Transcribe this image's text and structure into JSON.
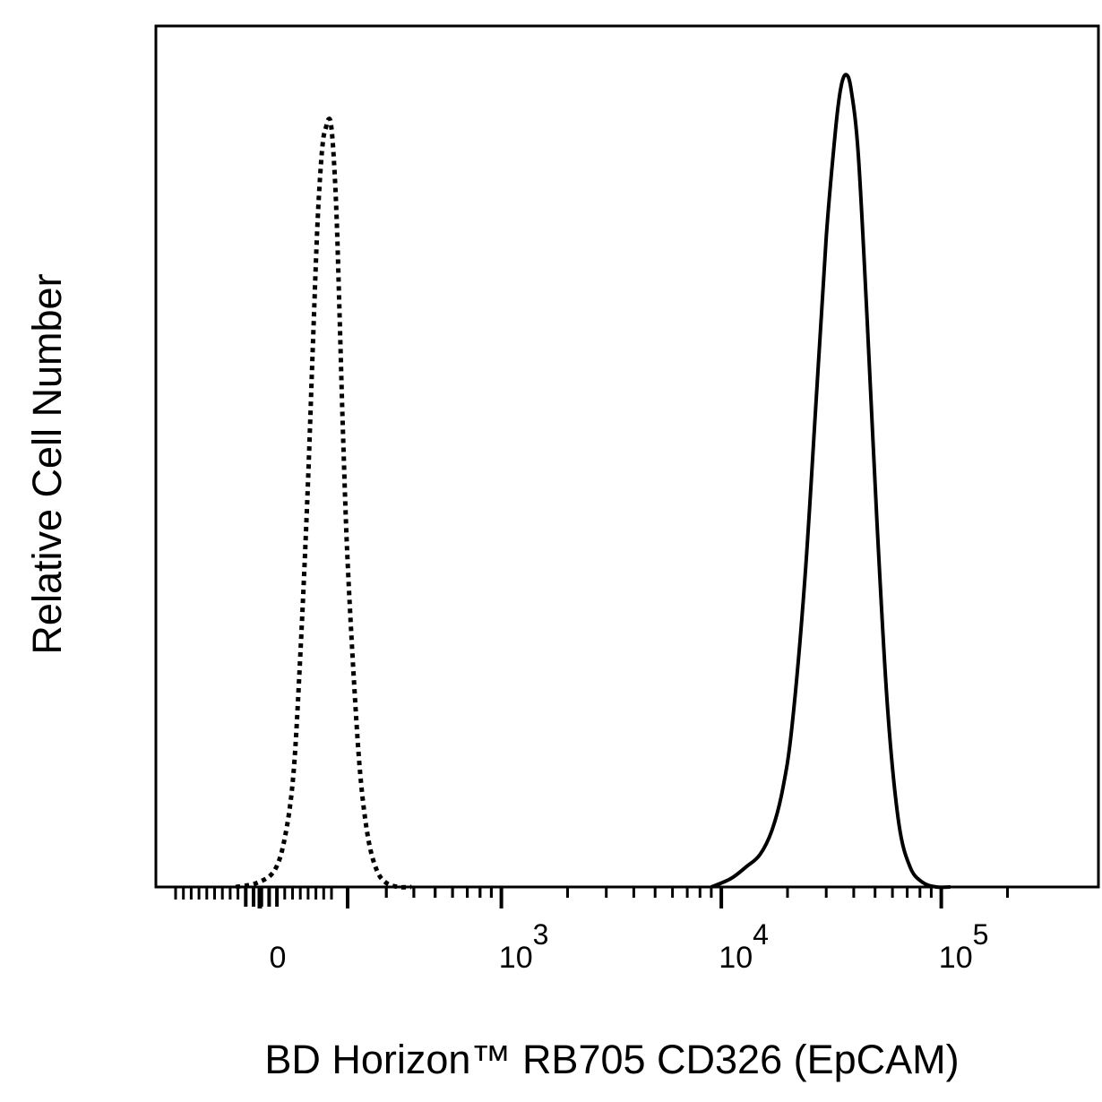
{
  "chart_data": {
    "type": "line",
    "title": "",
    "xlabel": "BD Horizon™ RB705 CD326 (EpCAM)",
    "ylabel": "Relative Cell Number",
    "x_scale": "biexponential",
    "grid": false,
    "legend": "none",
    "xlim": [
      -300,
      250000
    ],
    "ylim": [
      0,
      1.06
    ],
    "x_ticks": [
      {
        "value": 0,
        "base": "0",
        "exp": ""
      },
      {
        "value": 1000,
        "base": "10",
        "exp": "3"
      },
      {
        "value": 10000,
        "base": "10",
        "exp": "4"
      },
      {
        "value": 100000,
        "base": "10",
        "exp": "5"
      }
    ],
    "series": [
      {
        "style": "dotted",
        "color": "#000000",
        "x": [
          -120,
          -60,
          -10,
          20,
          45,
          65,
          85,
          100,
          112,
          122,
          130,
          138,
          145,
          152,
          160,
          168,
          176,
          186,
          198,
          212,
          228,
          248,
          272,
          300,
          340,
          390
        ],
        "y": [
          0.0,
          0.005,
          0.02,
          0.06,
          0.14,
          0.29,
          0.48,
          0.66,
          0.8,
          0.88,
          0.92,
          0.935,
          0.945,
          0.94,
          0.9,
          0.83,
          0.72,
          0.57,
          0.42,
          0.27,
          0.14,
          0.06,
          0.02,
          0.005,
          0.0,
          0.0
        ]
      },
      {
        "style": "solid",
        "color": "#000000",
        "x": [
          9000,
          11000,
          13000,
          15000,
          17000,
          19000,
          21000,
          24000,
          27000,
          30000,
          33000,
          35000,
          37000,
          39000,
          42000,
          46000,
          51000,
          57000,
          64000,
          72000,
          82000,
          95000,
          110000
        ],
        "y": [
          0.0,
          0.01,
          0.025,
          0.04,
          0.07,
          0.12,
          0.2,
          0.38,
          0.6,
          0.8,
          0.93,
          0.985,
          1.0,
          0.98,
          0.9,
          0.7,
          0.45,
          0.22,
          0.08,
          0.025,
          0.006,
          0.0,
          0.0
        ]
      }
    ]
  }
}
